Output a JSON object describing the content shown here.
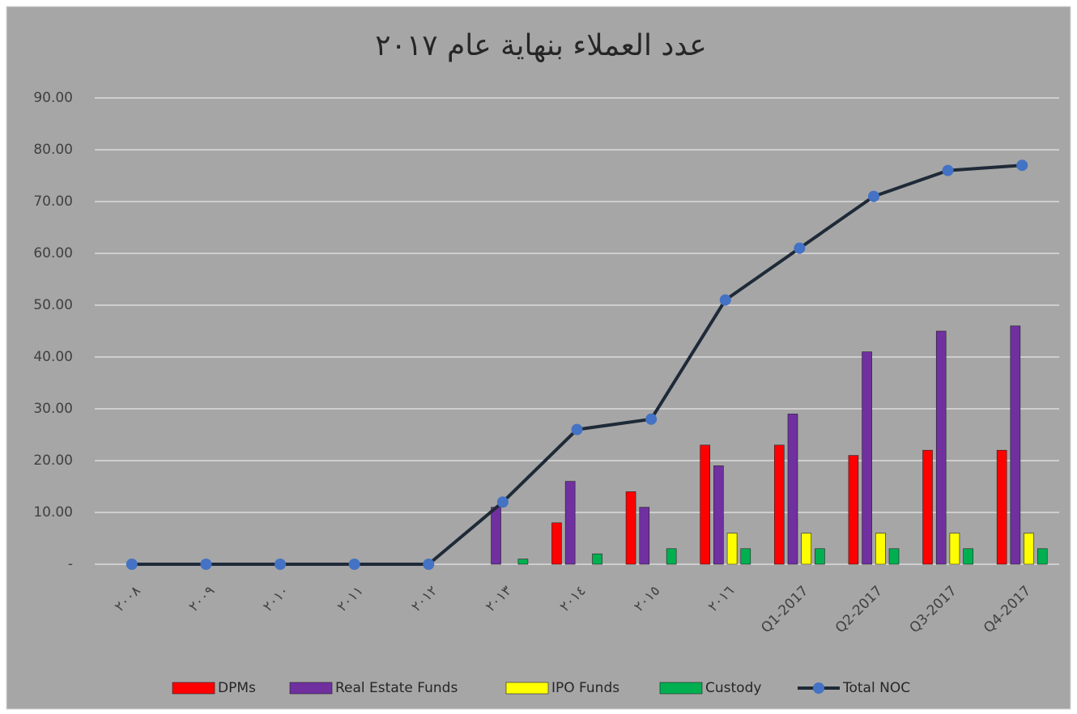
{
  "chart_data": {
    "type": "bar+line",
    "title": "عدد العملاء بنهاية عام ٢٠١٧",
    "categories": [
      "٢٠٠٨",
      "٢٠٠٩",
      "٢٠١٠",
      "٢٠١١",
      "٢٠١٢",
      "٢٠١٣",
      "٢٠١٤",
      "٢٠١٥",
      "٢٠١٦",
      "Q1-2017",
      "Q2-2017",
      "Q3-2017",
      "Q4-2017"
    ],
    "series": [
      {
        "name": "DPMs",
        "type": "bar",
        "color": "#ff0000",
        "values": [
          0,
          0,
          0,
          0,
          0,
          0,
          8,
          14,
          23,
          23,
          21,
          22,
          22
        ]
      },
      {
        "name": "Real Estate Funds",
        "type": "bar",
        "color": "#7030a0",
        "values": [
          0,
          0,
          0,
          0,
          0,
          11,
          16,
          11,
          19,
          29,
          41,
          45,
          46
        ]
      },
      {
        "name": "IPO Funds",
        "type": "bar",
        "color": "#ffff00",
        "values": [
          0,
          0,
          0,
          0,
          0,
          0,
          0,
          0,
          6,
          6,
          6,
          6,
          6
        ]
      },
      {
        "name": "Custody",
        "type": "bar",
        "color": "#00b050",
        "values": [
          0,
          0,
          0,
          0,
          0,
          1,
          2,
          3,
          3,
          3,
          3,
          3,
          3
        ]
      },
      {
        "name": "Total NOC",
        "type": "line",
        "color": "#1f2a38",
        "marker_color": "#4472c4",
        "values": [
          0,
          0,
          0,
          0,
          0,
          12,
          26,
          28,
          51,
          61,
          71,
          76,
          77
        ]
      }
    ],
    "ylim": [
      0,
      90
    ],
    "yticks": [
      {
        "value": 0,
        "label": "-"
      },
      {
        "value": 10,
        "label": "10.00"
      },
      {
        "value": 20,
        "label": "20.00"
      },
      {
        "value": 30,
        "label": "30.00"
      },
      {
        "value": 40,
        "label": "40.00"
      },
      {
        "value": 50,
        "label": "50.00"
      },
      {
        "value": 60,
        "label": "60.00"
      },
      {
        "value": 70,
        "label": "70.00"
      },
      {
        "value": 80,
        "label": "80.00"
      },
      {
        "value": 90,
        "label": "90.00"
      }
    ],
    "grid": true,
    "legend": "bottom"
  }
}
